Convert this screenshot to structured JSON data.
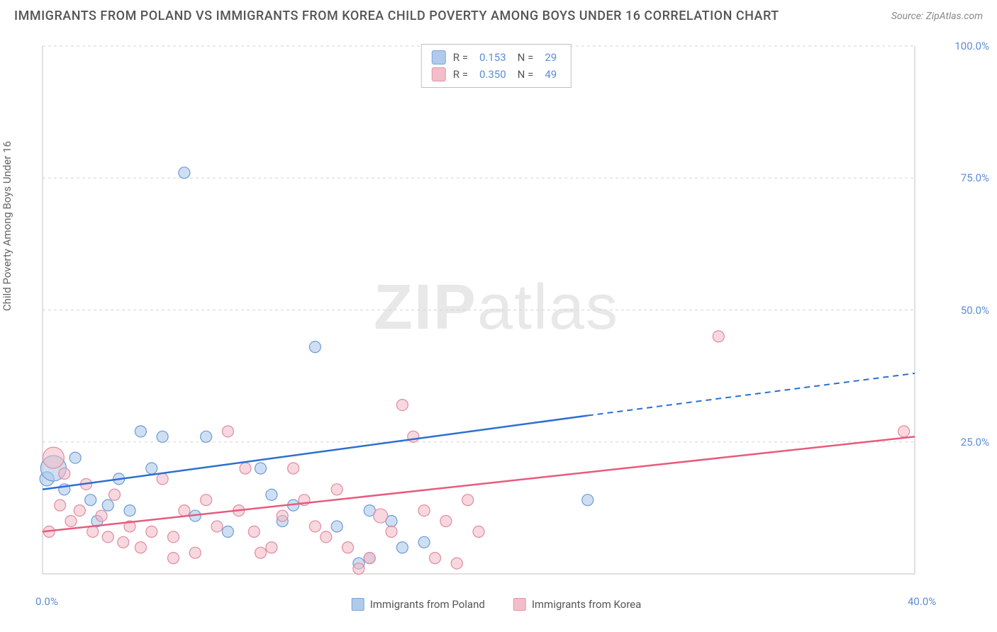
{
  "title": "IMMIGRANTS FROM POLAND VS IMMIGRANTS FROM KOREA CHILD POVERTY AMONG BOYS UNDER 16 CORRELATION CHART",
  "source": "Source: ZipAtlas.com",
  "y_axis_label": "Child Poverty Among Boys Under 16",
  "watermark_bold": "ZIP",
  "watermark_rest": "atlas",
  "chart": {
    "type": "scatter",
    "xlim": [
      0,
      40
    ],
    "ylim": [
      0,
      100
    ],
    "x_ticks": [
      0,
      40
    ],
    "x_tick_labels": [
      "0.0%",
      "40.0%"
    ],
    "y_ticks": [
      25,
      50,
      75,
      100
    ],
    "y_tick_labels": [
      "25.0%",
      "50.0%",
      "75.0%",
      "100.0%"
    ],
    "grid_color": "#d5d5d5",
    "background_color": "#ffffff",
    "series": [
      {
        "name": "Immigrants from Poland",
        "fill_color": "#a8c5e8",
        "stroke_color": "#6a9bd8",
        "fill_opacity": 0.55,
        "line_color": "#2d6fd1",
        "R": "0.153",
        "N": "29",
        "regression": {
          "x1": 0,
          "y1": 16,
          "x2": 25,
          "y2": 30,
          "dash_x2": 40,
          "dash_y2": 38
        },
        "points": [
          {
            "x": 0.2,
            "y": 18,
            "r": 10
          },
          {
            "x": 0.5,
            "y": 20,
            "r": 18
          },
          {
            "x": 1.0,
            "y": 16,
            "r": 8
          },
          {
            "x": 1.5,
            "y": 22,
            "r": 8
          },
          {
            "x": 2.2,
            "y": 14,
            "r": 8
          },
          {
            "x": 2.5,
            "y": 10,
            "r": 8
          },
          {
            "x": 3.0,
            "y": 13,
            "r": 8
          },
          {
            "x": 3.5,
            "y": 18,
            "r": 8
          },
          {
            "x": 4.0,
            "y": 12,
            "r": 8
          },
          {
            "x": 4.5,
            "y": 27,
            "r": 8
          },
          {
            "x": 5.0,
            "y": 20,
            "r": 8
          },
          {
            "x": 5.5,
            "y": 26,
            "r": 8
          },
          {
            "x": 6.5,
            "y": 76,
            "r": 8
          },
          {
            "x": 7.0,
            "y": 11,
            "r": 8
          },
          {
            "x": 7.5,
            "y": 26,
            "r": 8
          },
          {
            "x": 8.5,
            "y": 8,
            "r": 8
          },
          {
            "x": 10.0,
            "y": 20,
            "r": 8
          },
          {
            "x": 10.5,
            "y": 15,
            "r": 8
          },
          {
            "x": 11.0,
            "y": 10,
            "r": 8
          },
          {
            "x": 11.5,
            "y": 13,
            "r": 8
          },
          {
            "x": 12.5,
            "y": 43,
            "r": 8
          },
          {
            "x": 13.5,
            "y": 9,
            "r": 8
          },
          {
            "x": 14.5,
            "y": 2,
            "r": 8
          },
          {
            "x": 15.0,
            "y": 3,
            "r": 8
          },
          {
            "x": 16.0,
            "y": 10,
            "r": 8
          },
          {
            "x": 16.5,
            "y": 5,
            "r": 8
          },
          {
            "x": 17.5,
            "y": 6,
            "r": 8
          },
          {
            "x": 15.0,
            "y": 12,
            "r": 8
          },
          {
            "x": 25.0,
            "y": 14,
            "r": 8
          }
        ]
      },
      {
        "name": "Immigrants from Korea",
        "fill_color": "#f0b8c4",
        "stroke_color": "#e28a9e",
        "fill_opacity": 0.55,
        "line_color": "#e85a7d",
        "R": "0.350",
        "N": "49",
        "regression": {
          "x1": 0,
          "y1": 8,
          "x2": 40,
          "y2": 26,
          "dash_x2": 40,
          "dash_y2": 26
        },
        "points": [
          {
            "x": 0.3,
            "y": 8,
            "r": 8
          },
          {
            "x": 0.5,
            "y": 22,
            "r": 15
          },
          {
            "x": 0.8,
            "y": 13,
            "r": 8
          },
          {
            "x": 1.0,
            "y": 19,
            "r": 8
          },
          {
            "x": 1.3,
            "y": 10,
            "r": 8
          },
          {
            "x": 1.7,
            "y": 12,
            "r": 8
          },
          {
            "x": 2.0,
            "y": 17,
            "r": 8
          },
          {
            "x": 2.3,
            "y": 8,
            "r": 8
          },
          {
            "x": 2.7,
            "y": 11,
            "r": 8
          },
          {
            "x": 3.0,
            "y": 7,
            "r": 8
          },
          {
            "x": 3.3,
            "y": 15,
            "r": 8
          },
          {
            "x": 3.7,
            "y": 6,
            "r": 8
          },
          {
            "x": 4.0,
            "y": 9,
            "r": 8
          },
          {
            "x": 4.5,
            "y": 5,
            "r": 8
          },
          {
            "x": 5.0,
            "y": 8,
            "r": 8
          },
          {
            "x": 5.5,
            "y": 18,
            "r": 8
          },
          {
            "x": 6.0,
            "y": 7,
            "r": 8
          },
          {
            "x": 6.5,
            "y": 12,
            "r": 8
          },
          {
            "x": 7.0,
            "y": 4,
            "r": 8
          },
          {
            "x": 7.5,
            "y": 14,
            "r": 8
          },
          {
            "x": 8.0,
            "y": 9,
            "r": 8
          },
          {
            "x": 8.5,
            "y": 27,
            "r": 8
          },
          {
            "x": 9.0,
            "y": 12,
            "r": 8
          },
          {
            "x": 9.3,
            "y": 20,
            "r": 8
          },
          {
            "x": 9.7,
            "y": 8,
            "r": 8
          },
          {
            "x": 10.0,
            "y": 4,
            "r": 8
          },
          {
            "x": 10.5,
            "y": 5,
            "r": 8
          },
          {
            "x": 11.0,
            "y": 11,
            "r": 8
          },
          {
            "x": 11.5,
            "y": 20,
            "r": 8
          },
          {
            "x": 12.0,
            "y": 14,
            "r": 8
          },
          {
            "x": 12.5,
            "y": 9,
            "r": 8
          },
          {
            "x": 13.0,
            "y": 7,
            "r": 8
          },
          {
            "x": 13.5,
            "y": 16,
            "r": 8
          },
          {
            "x": 14.0,
            "y": 5,
            "r": 8
          },
          {
            "x": 14.5,
            "y": 1,
            "r": 8
          },
          {
            "x": 15.0,
            "y": 3,
            "r": 8
          },
          {
            "x": 15.5,
            "y": 11,
            "r": 10
          },
          {
            "x": 16.0,
            "y": 8,
            "r": 8
          },
          {
            "x": 16.5,
            "y": 32,
            "r": 8
          },
          {
            "x": 17.0,
            "y": 26,
            "r": 8
          },
          {
            "x": 17.5,
            "y": 12,
            "r": 8
          },
          {
            "x": 18.0,
            "y": 3,
            "r": 8
          },
          {
            "x": 18.5,
            "y": 10,
            "r": 8
          },
          {
            "x": 19.0,
            "y": 2,
            "r": 8
          },
          {
            "x": 19.5,
            "y": 14,
            "r": 8
          },
          {
            "x": 20.0,
            "y": 8,
            "r": 8
          },
          {
            "x": 31.0,
            "y": 45,
            "r": 8
          },
          {
            "x": 39.5,
            "y": 27,
            "r": 8
          },
          {
            "x": 6.0,
            "y": 3,
            "r": 8
          }
        ]
      }
    ]
  },
  "bottom_legend": [
    {
      "label": "Immigrants from Poland",
      "fill": "#a8c5e8",
      "stroke": "#6a9bd8"
    },
    {
      "label": "Immigrants from Korea",
      "fill": "#f0b8c4",
      "stroke": "#e28a9e"
    }
  ]
}
